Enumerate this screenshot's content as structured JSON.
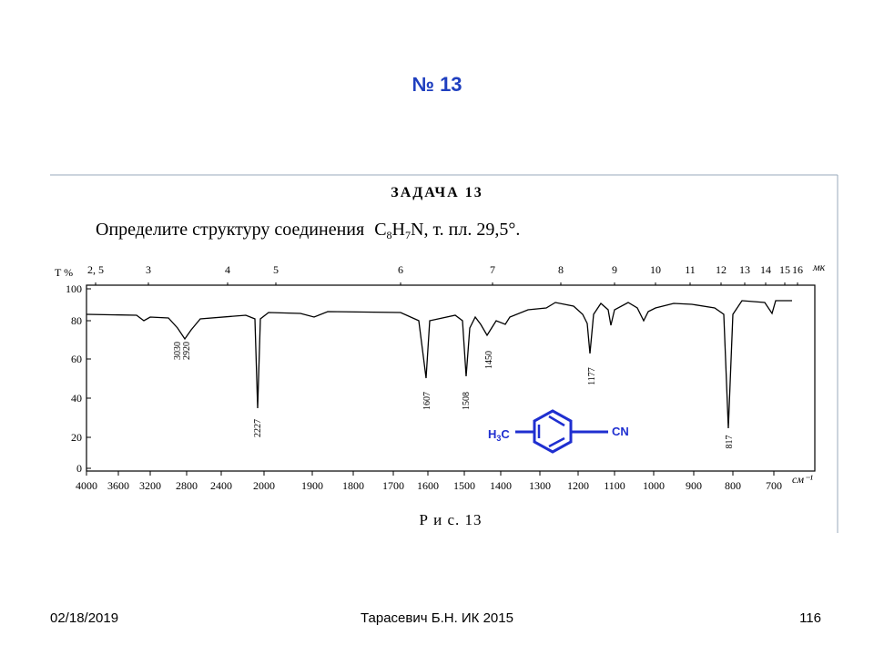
{
  "title": "№ 13",
  "problem": {
    "heading": "ЗАДАЧА 13",
    "text": "Определите структуру соединения",
    "formula": [
      "C",
      "8",
      "H",
      "7",
      "N"
    ],
    "suffix": ", т. пл. 29,5°."
  },
  "spectrum": {
    "y_label": "T %",
    "yticks": [
      "100",
      "80",
      "60",
      "40",
      "20",
      "0"
    ],
    "top_ticks": [
      "2, 5",
      "3",
      "4",
      "5",
      "6",
      "7",
      "8",
      "9",
      "10",
      "11",
      "12",
      "13",
      "14",
      "15",
      "16"
    ],
    "top_unit": "мк",
    "bottom_ticks": [
      "4000",
      "3600",
      "3200",
      "2800",
      "2400",
      "2000",
      "1900",
      "1800",
      "1700",
      "1600",
      "1500",
      "1400",
      "1300",
      "1200",
      "1100",
      "1000",
      "900",
      "800",
      "700"
    ],
    "bottom_unit": "см⁻¹",
    "peaks": [
      "3030",
      "2920",
      "2227",
      "1607",
      "1508",
      "1450",
      "1177",
      "817"
    ],
    "caption": "Р и с. 13"
  },
  "structure": {
    "left": [
      "H",
      "3",
      "C"
    ],
    "right": "CN"
  },
  "footer": {
    "date": "02/18/2019",
    "author": "Тарасевич Б.Н.  ИК 2015",
    "page": "116"
  }
}
